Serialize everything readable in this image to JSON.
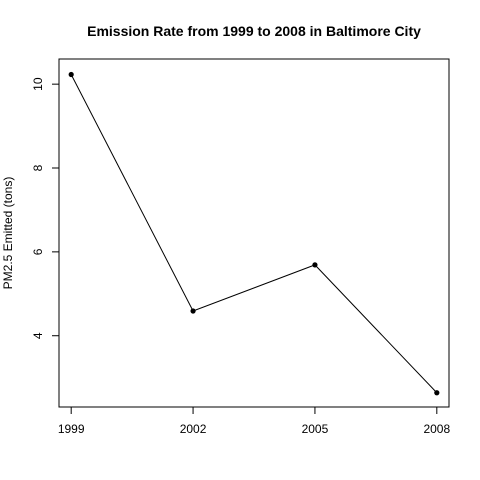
{
  "chart_data": {
    "type": "line",
    "title": "Emission Rate from 1999 to 2008 in Baltimore City",
    "xlabel": "",
    "ylabel": "PM2.5 Emitted (tons)",
    "x": [
      1999,
      2002,
      2005,
      2008
    ],
    "x_tick_labels": [
      "1999",
      "2002",
      "2005",
      "2008"
    ],
    "y_ticks": [
      4,
      6,
      8,
      10
    ],
    "y_tick_labels": [
      "4",
      "6",
      "8",
      "10"
    ],
    "ylim": [
      2.3,
      10.6
    ],
    "xlim": [
      1998.7,
      2008.3
    ],
    "series": [
      {
        "values": [
          10.23,
          4.59,
          5.69,
          2.64
        ],
        "color": "#000000",
        "marker": "filled-circle"
      }
    ],
    "grid": false,
    "legend": "none"
  }
}
